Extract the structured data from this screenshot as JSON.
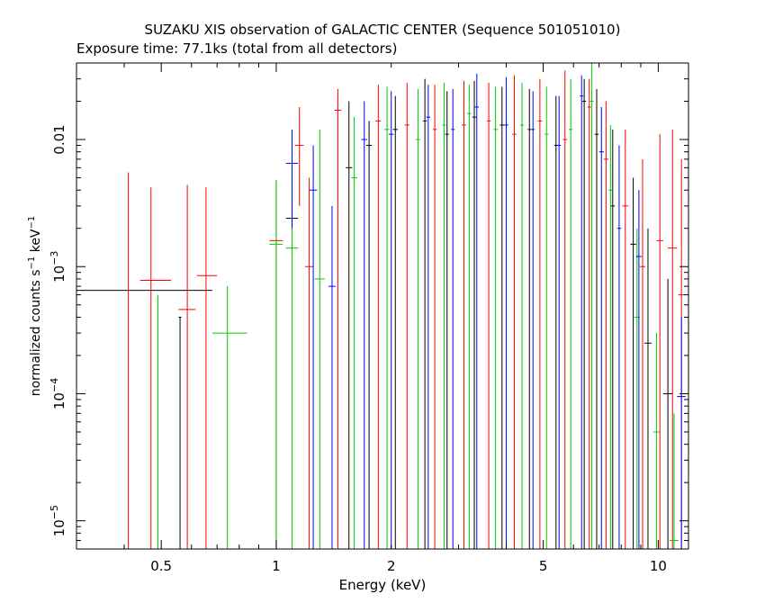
{
  "title": "SUZAKU XIS observation of GALACTIC CENTER (Sequence 501051010)",
  "subtitle": "Exposure time: 77.1ks (total from all detectors)",
  "chart_data": {
    "type": "scatter",
    "title": "SUZAKU XIS observation of GALACTIC CENTER (Sequence 501051010)",
    "subtitle": "Exposure time: 77.1ks (total from all detectors)",
    "xlabel": "Energy (keV)",
    "ylabel": "normalized counts s^-1 keV^-1",
    "xscale": "log",
    "yscale": "log",
    "xlim": [
      0.3,
      12
    ],
    "ylim": [
      6e-06,
      0.04
    ],
    "xticks": [
      {
        "value": 0.5,
        "label": "0.5"
      },
      {
        "value": 1,
        "label": "1"
      },
      {
        "value": 2,
        "label": "2"
      },
      {
        "value": 5,
        "label": "5"
      },
      {
        "value": 10,
        "label": "10"
      }
    ],
    "yticks": [
      {
        "value": 0.01,
        "label": "0.01",
        "base": "",
        "exp": ""
      },
      {
        "value": 0.001,
        "label": "10^-3",
        "base": "10",
        "exp": "−3"
      },
      {
        "value": 0.0001,
        "label": "10^-4",
        "base": "10",
        "exp": "−4"
      },
      {
        "value": 1e-05,
        "label": "10^-5",
        "base": "10",
        "exp": "−5"
      }
    ],
    "series": [
      {
        "color": "#000000",
        "points": [
          {
            "x": 0.505,
            "xlo": 0.3,
            "xhi": 0.68,
            "y": 0.00065,
            "ylo": 0.00065,
            "yhi": 0.00065
          },
          {
            "x": 0.56,
            "xlo": 0.555,
            "xhi": 0.565,
            "y": 0.0004,
            "ylo": 6e-06,
            "yhi": 0.0004
          },
          {
            "x": 1.1,
            "xlo": 1.06,
            "xhi": 1.14,
            "y": 0.0024,
            "ylo": 6e-06,
            "yhi": 0.007
          },
          {
            "x": 1.55,
            "xlo": 1.52,
            "xhi": 1.58,
            "y": 0.006,
            "ylo": 6e-06,
            "yhi": 0.02
          },
          {
            "x": 1.75,
            "xlo": 1.72,
            "xhi": 1.78,
            "y": 0.009,
            "ylo": 6e-06,
            "yhi": 0.014
          },
          {
            "x": 2.05,
            "xlo": 2.02,
            "xhi": 2.08,
            "y": 0.012,
            "ylo": 6e-06,
            "yhi": 0.022
          },
          {
            "x": 2.45,
            "xlo": 2.42,
            "xhi": 2.48,
            "y": 0.014,
            "ylo": 6e-06,
            "yhi": 0.03
          },
          {
            "x": 2.8,
            "xlo": 2.77,
            "xhi": 2.83,
            "y": 0.011,
            "ylo": 6e-06,
            "yhi": 0.024
          },
          {
            "x": 3.3,
            "xlo": 3.26,
            "xhi": 3.34,
            "y": 0.015,
            "ylo": 6e-06,
            "yhi": 0.029
          },
          {
            "x": 3.9,
            "xlo": 3.85,
            "xhi": 3.95,
            "y": 0.013,
            "ylo": 6e-06,
            "yhi": 0.026
          },
          {
            "x": 4.6,
            "xlo": 4.55,
            "xhi": 4.65,
            "y": 0.012,
            "ylo": 6e-06,
            "yhi": 0.025
          },
          {
            "x": 5.4,
            "xlo": 5.34,
            "xhi": 5.46,
            "y": 0.009,
            "ylo": 6e-06,
            "yhi": 0.022
          },
          {
            "x": 6.4,
            "xlo": 6.33,
            "xhi": 6.47,
            "y": 0.02,
            "ylo": 6e-06,
            "yhi": 0.03
          },
          {
            "x": 6.9,
            "xlo": 6.82,
            "xhi": 6.98,
            "y": 0.011,
            "ylo": 6e-06,
            "yhi": 0.025
          },
          {
            "x": 7.6,
            "xlo": 7.5,
            "xhi": 7.7,
            "y": 0.003,
            "ylo": 6e-06,
            "yhi": 0.012
          },
          {
            "x": 8.6,
            "xlo": 8.45,
            "xhi": 8.75,
            "y": 0.0015,
            "ylo": 6e-06,
            "yhi": 0.005
          },
          {
            "x": 9.4,
            "xlo": 9.2,
            "xhi": 9.6,
            "y": 0.00025,
            "ylo": 6e-06,
            "yhi": 0.002
          },
          {
            "x": 10.6,
            "xlo": 10.3,
            "xhi": 10.9,
            "y": 0.0001,
            "ylo": 6e-06,
            "yhi": 0.0008
          }
        ]
      },
      {
        "color": "#ff0000",
        "points": [
          {
            "x": 0.41,
            "xlo": 0.38,
            "xhi": 0.44,
            "y": 6e-06,
            "ylo": 6e-06,
            "yhi": 0.0055
          },
          {
            "x": 0.47,
            "xlo": 0.44,
            "xhi": 0.53,
            "y": 0.00078,
            "ylo": 6e-06,
            "yhi": 0.0042
          },
          {
            "x": 0.585,
            "xlo": 0.555,
            "xhi": 0.615,
            "y": 0.00046,
            "ylo": 6e-06,
            "yhi": 0.0044
          },
          {
            "x": 0.655,
            "xlo": 0.62,
            "xhi": 0.7,
            "y": 0.00085,
            "ylo": 6e-06,
            "yhi": 0.0042
          },
          {
            "x": 1.0,
            "xlo": 0.96,
            "xhi": 1.04,
            "y": 0.0016,
            "ylo": 6e-06,
            "yhi": 0.0048
          },
          {
            "x": 1.15,
            "xlo": 1.12,
            "xhi": 1.18,
            "y": 0.009,
            "ylo": 0.003,
            "yhi": 0.018
          },
          {
            "x": 1.22,
            "xlo": 1.19,
            "xhi": 1.25,
            "y": 0.001,
            "ylo": 6e-06,
            "yhi": 0.005
          },
          {
            "x": 1.45,
            "xlo": 1.42,
            "xhi": 1.48,
            "y": 0.017,
            "ylo": 6e-06,
            "yhi": 0.025
          },
          {
            "x": 1.85,
            "xlo": 1.82,
            "xhi": 1.88,
            "y": 0.014,
            "ylo": 6e-06,
            "yhi": 0.027
          },
          {
            "x": 2.2,
            "xlo": 2.17,
            "xhi": 2.23,
            "y": 0.013,
            "ylo": 6e-06,
            "yhi": 0.028
          },
          {
            "x": 2.6,
            "xlo": 2.57,
            "xhi": 2.63,
            "y": 0.012,
            "ylo": 6e-06,
            "yhi": 0.027
          },
          {
            "x": 3.1,
            "xlo": 3.06,
            "xhi": 3.14,
            "y": 0.013,
            "ylo": 6e-06,
            "yhi": 0.029
          },
          {
            "x": 3.6,
            "xlo": 3.56,
            "xhi": 3.64,
            "y": 0.014,
            "ylo": 6e-06,
            "yhi": 0.028
          },
          {
            "x": 4.2,
            "xlo": 4.15,
            "xhi": 4.25,
            "y": 0.011,
            "ylo": 6e-06,
            "yhi": 0.032
          },
          {
            "x": 4.9,
            "xlo": 4.84,
            "xhi": 4.96,
            "y": 0.014,
            "ylo": 6e-06,
            "yhi": 0.03
          },
          {
            "x": 5.7,
            "xlo": 5.63,
            "xhi": 5.77,
            "y": 0.01,
            "ylo": 6e-06,
            "yhi": 0.035
          },
          {
            "x": 6.6,
            "xlo": 6.53,
            "xhi": 6.67,
            "y": 0.018,
            "ylo": 6e-06,
            "yhi": 0.03
          },
          {
            "x": 7.3,
            "xlo": 7.2,
            "xhi": 7.4,
            "y": 0.007,
            "ylo": 6e-06,
            "yhi": 0.02
          },
          {
            "x": 8.2,
            "xlo": 8.05,
            "xhi": 8.35,
            "y": 0.003,
            "ylo": 6e-06,
            "yhi": 0.012
          },
          {
            "x": 9.1,
            "xlo": 8.95,
            "xhi": 9.25,
            "y": 0.001,
            "ylo": 6e-06,
            "yhi": 0.007
          },
          {
            "x": 10.1,
            "xlo": 9.9,
            "xhi": 10.3,
            "y": 0.0016,
            "ylo": 6e-06,
            "yhi": 0.011
          },
          {
            "x": 10.9,
            "xlo": 10.6,
            "xhi": 11.2,
            "y": 0.0014,
            "ylo": 6e-06,
            "yhi": 0.012
          },
          {
            "x": 11.5,
            "xlo": 11.3,
            "xhi": 11.7,
            "y": 0.0006,
            "ylo": 6e-06,
            "yhi": 0.007
          }
        ]
      },
      {
        "color": "#00cc00",
        "points": [
          {
            "x": 0.49,
            "xlo": 0.485,
            "xhi": 0.495,
            "y": 6e-06,
            "ylo": 6e-06,
            "yhi": 0.0006
          },
          {
            "x": 0.745,
            "xlo": 0.68,
            "xhi": 0.84,
            "y": 0.0003,
            "ylo": 6e-06,
            "yhi": 0.0007
          },
          {
            "x": 1.0,
            "xlo": 0.96,
            "xhi": 1.04,
            "y": 0.0015,
            "ylo": 6e-06,
            "yhi": 0.0048
          },
          {
            "x": 1.1,
            "xlo": 1.06,
            "xhi": 1.14,
            "y": 0.0014,
            "ylo": 6e-06,
            "yhi": 0.0044
          },
          {
            "x": 1.3,
            "xlo": 1.26,
            "xhi": 1.34,
            "y": 0.0008,
            "ylo": 6e-06,
            "yhi": 0.012
          },
          {
            "x": 1.6,
            "xlo": 1.57,
            "xhi": 1.63,
            "y": 0.005,
            "ylo": 6e-06,
            "yhi": 0.015
          },
          {
            "x": 1.95,
            "xlo": 1.92,
            "xhi": 1.98,
            "y": 0.012,
            "ylo": 6e-06,
            "yhi": 0.026
          },
          {
            "x": 2.35,
            "xlo": 2.32,
            "xhi": 2.38,
            "y": 0.01,
            "ylo": 6e-06,
            "yhi": 0.025
          },
          {
            "x": 2.75,
            "xlo": 2.72,
            "xhi": 2.78,
            "y": 0.013,
            "ylo": 6e-06,
            "yhi": 0.028
          },
          {
            "x": 3.2,
            "xlo": 3.16,
            "xhi": 3.24,
            "y": 0.016,
            "ylo": 6e-06,
            "yhi": 0.027
          },
          {
            "x": 3.75,
            "xlo": 3.7,
            "xhi": 3.8,
            "y": 0.012,
            "ylo": 6e-06,
            "yhi": 0.026
          },
          {
            "x": 4.4,
            "xlo": 4.35,
            "xhi": 4.45,
            "y": 0.013,
            "ylo": 6e-06,
            "yhi": 0.028
          },
          {
            "x": 5.1,
            "xlo": 5.04,
            "xhi": 5.16,
            "y": 0.011,
            "ylo": 6e-06,
            "yhi": 0.026
          },
          {
            "x": 5.9,
            "xlo": 5.83,
            "xhi": 5.97,
            "y": 0.012,
            "ylo": 6e-06,
            "yhi": 0.03
          },
          {
            "x": 6.7,
            "xlo": 6.63,
            "xhi": 6.77,
            "y": 0.02,
            "ylo": 6e-06,
            "yhi": 0.04
          },
          {
            "x": 7.5,
            "xlo": 7.4,
            "xhi": 7.6,
            "y": 0.004,
            "ylo": 6e-06,
            "yhi": 0.013
          },
          {
            "x": 8.8,
            "xlo": 8.65,
            "xhi": 8.95,
            "y": 0.0004,
            "ylo": 6e-06,
            "yhi": 0.002
          },
          {
            "x": 9.9,
            "xlo": 9.7,
            "xhi": 10.1,
            "y": 5e-05,
            "ylo": 6e-06,
            "yhi": 0.0003
          },
          {
            "x": 11.0,
            "xlo": 10.7,
            "xhi": 11.3,
            "y": 7e-06,
            "ylo": 6e-06,
            "yhi": 7e-05
          }
        ]
      },
      {
        "color": "#0000ff",
        "points": [
          {
            "x": 1.1,
            "xlo": 1.06,
            "xhi": 1.14,
            "y": 0.0065,
            "ylo": 0.002,
            "yhi": 0.012
          },
          {
            "x": 1.25,
            "xlo": 1.22,
            "xhi": 1.28,
            "y": 0.004,
            "ylo": 6e-06,
            "yhi": 0.009
          },
          {
            "x": 1.4,
            "xlo": 1.37,
            "xhi": 1.43,
            "y": 0.0007,
            "ylo": 6e-06,
            "yhi": 0.003
          },
          {
            "x": 1.7,
            "xlo": 1.67,
            "xhi": 1.73,
            "y": 0.01,
            "ylo": 6e-06,
            "yhi": 0.02
          },
          {
            "x": 2.0,
            "xlo": 1.97,
            "xhi": 2.03,
            "y": 0.011,
            "ylo": 6e-06,
            "yhi": 0.024
          },
          {
            "x": 2.5,
            "xlo": 2.47,
            "xhi": 2.53,
            "y": 0.015,
            "ylo": 6e-06,
            "yhi": 0.027
          },
          {
            "x": 2.9,
            "xlo": 2.87,
            "xhi": 2.93,
            "y": 0.012,
            "ylo": 6e-06,
            "yhi": 0.025
          },
          {
            "x": 3.35,
            "xlo": 3.31,
            "xhi": 3.39,
            "y": 0.018,
            "ylo": 6e-06,
            "yhi": 0.033
          },
          {
            "x": 4.0,
            "xlo": 3.95,
            "xhi": 4.05,
            "y": 0.013,
            "ylo": 6e-06,
            "yhi": 0.031
          },
          {
            "x": 4.7,
            "xlo": 4.65,
            "xhi": 4.75,
            "y": 0.012,
            "ylo": 6e-06,
            "yhi": 0.024
          },
          {
            "x": 5.5,
            "xlo": 5.44,
            "xhi": 5.56,
            "y": 0.009,
            "ylo": 6e-06,
            "yhi": 0.022
          },
          {
            "x": 6.3,
            "xlo": 6.23,
            "xhi": 6.37,
            "y": 0.022,
            "ylo": 6e-06,
            "yhi": 0.032
          },
          {
            "x": 7.1,
            "xlo": 7.0,
            "xhi": 7.2,
            "y": 0.008,
            "ylo": 6e-06,
            "yhi": 0.018
          },
          {
            "x": 7.9,
            "xlo": 7.8,
            "xhi": 8.0,
            "y": 0.002,
            "ylo": 6e-06,
            "yhi": 0.009
          },
          {
            "x": 8.9,
            "xlo": 8.75,
            "xhi": 9.05,
            "y": 0.0012,
            "ylo": 6e-06,
            "yhi": 0.004
          },
          {
            "x": 11.5,
            "xlo": 11.2,
            "xhi": 11.8,
            "y": 9.5e-05,
            "ylo": 6e-06,
            "yhi": 0.0004
          }
        ]
      }
    ]
  }
}
